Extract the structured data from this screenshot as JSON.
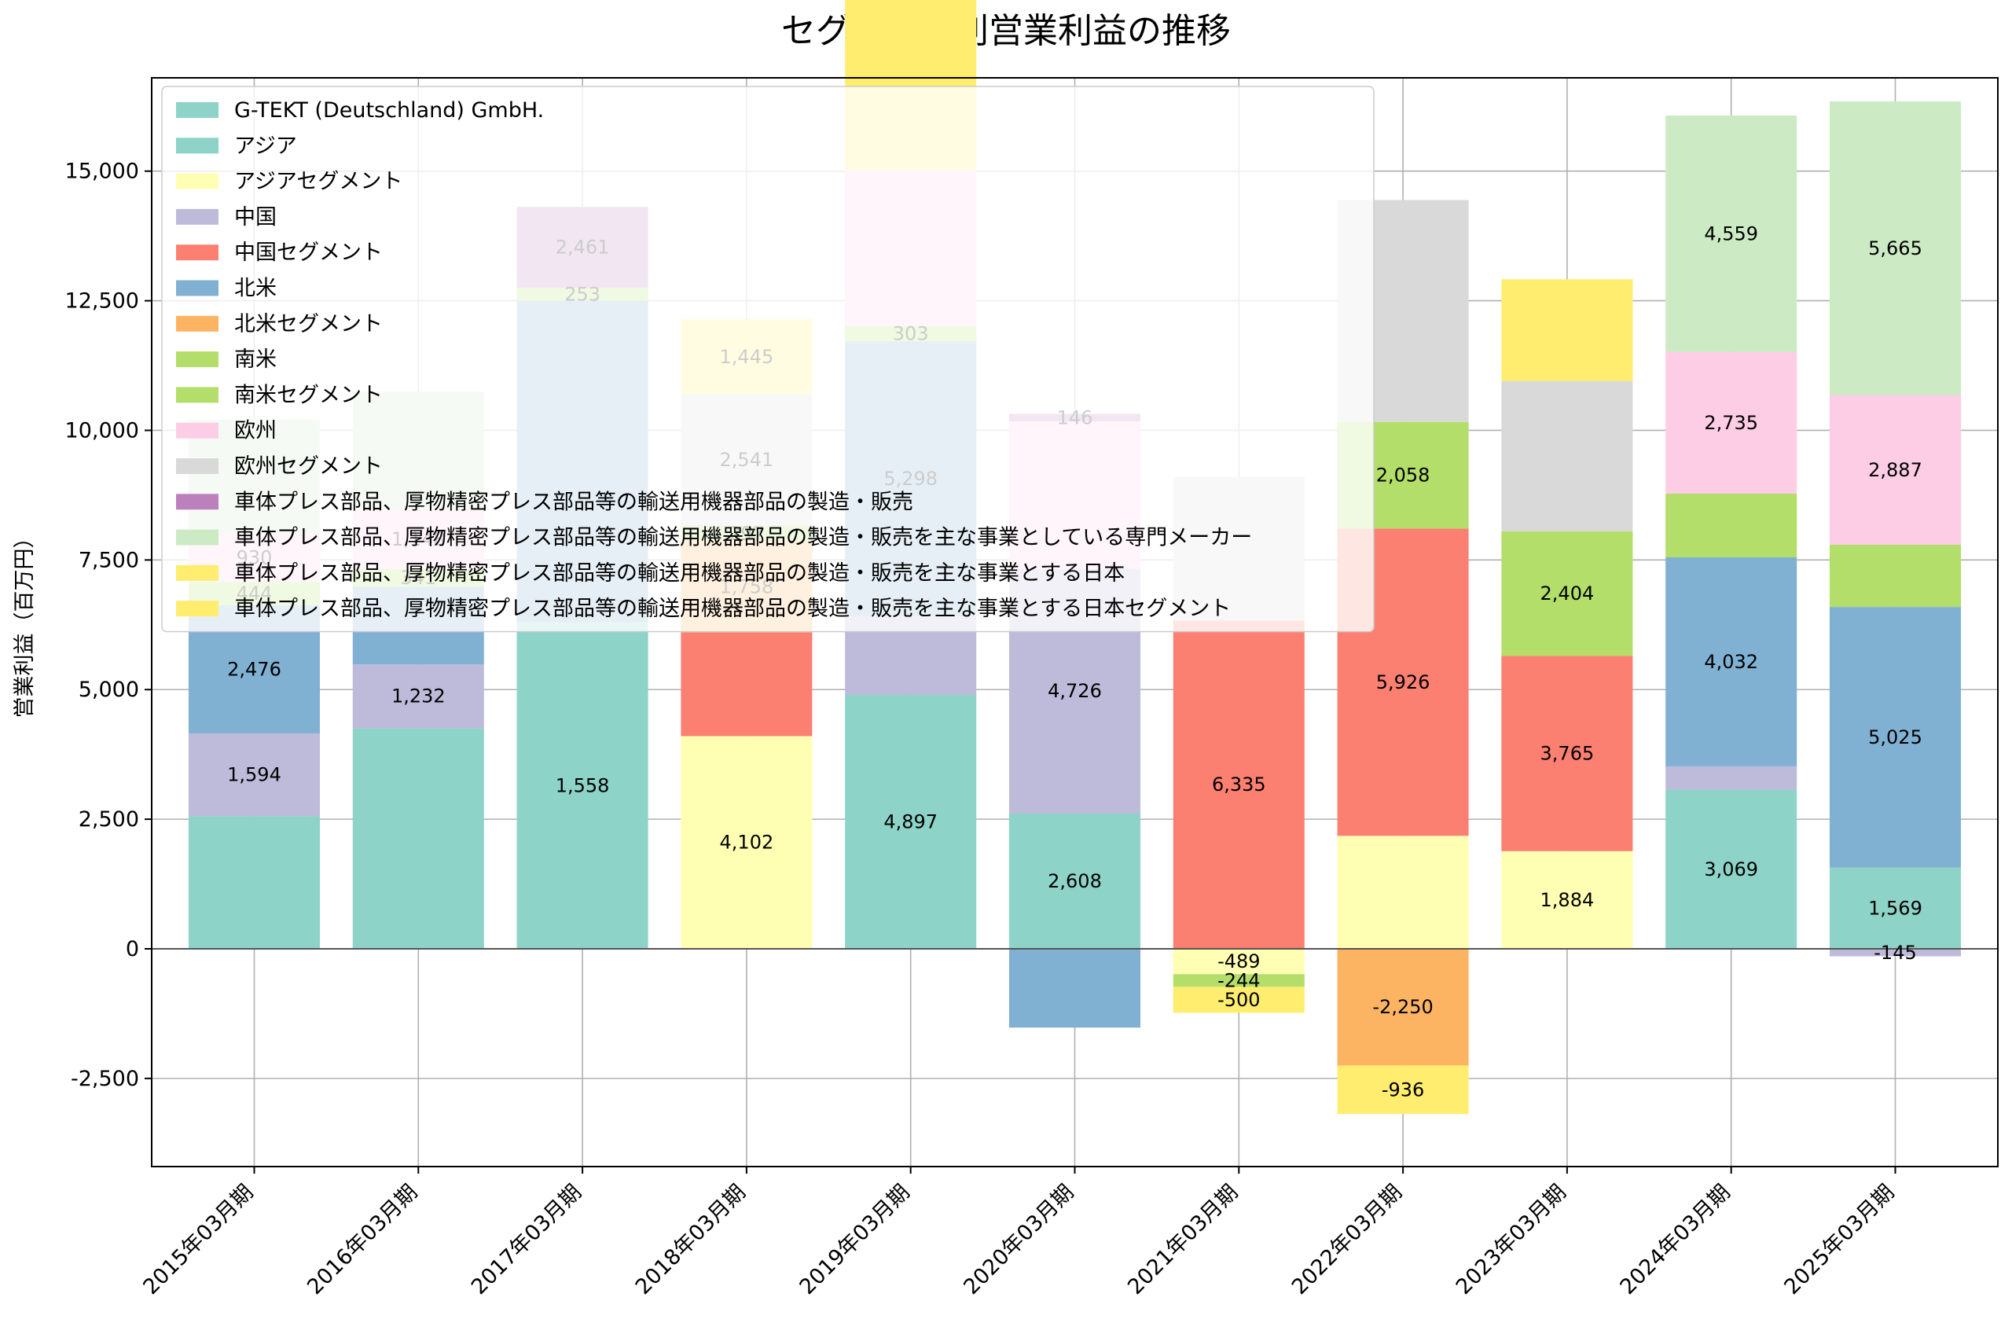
{
  "chart_data": {
    "type": "bar",
    "stacked": true,
    "title": "セグメント別営業利益の推移",
    "ylabel": "営業利益（百万円）",
    "xlabel": "",
    "ylim": [
      -4200,
      16800
    ],
    "yticks": [
      -2500,
      0,
      2500,
      5000,
      7500,
      10000,
      12500,
      15000
    ],
    "ytick_labels": [
      "-2,500",
      "0",
      "2,500",
      "5,000",
      "7,500",
      "10,000",
      "12,500",
      "15,000"
    ],
    "grid": true,
    "legend_position": "top-left",
    "categories": [
      "2015年03月期",
      "2016年03月期",
      "2017年03月期",
      "2018年03月期",
      "2019年03月期",
      "2020年03月期",
      "2021年03月期",
      "2022年03月期",
      "2023年03月期",
      "2024年03月期",
      "2025年03月期"
    ],
    "series": [
      {
        "name": "G-TEKT (Deutschland) GmbH.",
        "color": "#8dd3c7",
        "values": [
          null,
          null,
          null,
          null,
          null,
          null,
          null,
          null,
          null,
          null,
          null
        ]
      },
      {
        "name": "アジア",
        "color": "#8dd3c7",
        "values": [
          2561,
          4255,
          6300,
          null,
          4897,
          2608,
          null,
          null,
          null,
          3069,
          1569
        ]
      },
      {
        "name": "アジアセグメント",
        "color": "#ffffb3",
        "values": [
          null,
          null,
          null,
          4102,
          null,
          null,
          -489,
          2179,
          1884,
          null,
          null
        ]
      },
      {
        "name": "中国",
        "color": "#bebada",
        "values": [
          1594,
          1232,
          null,
          null,
          1520,
          4726,
          null,
          null,
          null,
          450,
          -145
        ]
      },
      {
        "name": "中国セグメント",
        "color": "#fb8072",
        "values": [
          null,
          null,
          null,
          2000,
          null,
          null,
          6335,
          5926,
          3765,
          null,
          null
        ]
      },
      {
        "name": "北米",
        "color": "#80b1d3",
        "values": [
          2476,
          1500,
          6200,
          null,
          5298,
          -1520,
          null,
          null,
          null,
          4032,
          5025
        ]
      },
      {
        "name": "北米セグメント",
        "color": "#fdb462",
        "values": [
          null,
          null,
          null,
          1758,
          null,
          null,
          null,
          -2250,
          null,
          null,
          null
        ]
      },
      {
        "name": "南米",
        "color": "#b3de69",
        "values": [
          444,
          341,
          253,
          null,
          303,
          null,
          null,
          null,
          null,
          1228,
          1200
        ]
      },
      {
        "name": "南米セグメント",
        "color": "#b3de69",
        "values": [
          null,
          null,
          null,
          297,
          null,
          null,
          -244,
          2058,
          2404,
          null,
          null
        ]
      },
      {
        "name": "欧州",
        "color": "#fccde5",
        "values": [
          930,
          1148,
          null,
          null,
          3000,
          2838,
          null,
          null,
          null,
          2735,
          2887
        ]
      },
      {
        "name": "欧州セグメント",
        "color": "#d9d9d9",
        "values": [
          null,
          null,
          null,
          2541,
          null,
          null,
          2770,
          4280,
          2900,
          null,
          null
        ]
      },
      {
        "name": "車体プレス部品、厚物精密プレス部品等の輸送用機器部品の製造・販売",
        "color": "#bc80bd",
        "values": [
          null,
          null,
          1558,
          null,
          null,
          146,
          null,
          null,
          null,
          null,
          null
        ]
      },
      {
        "name": "車体プレス部品、厚物精密プレス部品等の輸送用機器部品の製造・販売を主な事業としている専門メーカー",
        "color": "#ccebc5",
        "values": [
          2200,
          2270,
          null,
          null,
          null,
          null,
          null,
          null,
          null,
          4559,
          5665
        ]
      },
      {
        "name": "車体プレス部品、厚物精密プレス部品等の輸送用機器部品の製造・販売を主な事業とする日本",
        "color": "#ffed6f",
        "values": [
          null,
          null,
          null,
          1445,
          4900,
          null,
          null,
          null,
          null,
          null,
          null
        ]
      },
      {
        "name": "車体プレス部品、厚物精密プレス部品等の輸送用機器部品の製造・販売を主な事業とする日本セグメント",
        "color": "#ffed6f",
        "values": [
          null,
          null,
          null,
          null,
          null,
          null,
          -500,
          -936,
          1962,
          null,
          null
        ]
      }
    ],
    "data_labels": [
      [
        "1,594",
        "2,476",
        "444",
        "930"
      ],
      [
        "1,232",
        "341",
        "1,148"
      ],
      [
        "2,461",
        "253",
        "1,558"
      ],
      [
        "4,102",
        "1,758",
        "297",
        "2,541",
        "1,445"
      ],
      [
        "4,897",
        "5,298",
        "303"
      ],
      [
        "2,608",
        "4,726",
        "146"
      ],
      [
        "6,335",
        "-489",
        "-244",
        "-500"
      ],
      [
        "5,926",
        "2,058",
        "-2,250",
        "-936"
      ],
      [
        "1,884",
        "3,765",
        "2,404"
      ],
      [
        "3,069",
        "4,032",
        "2,735",
        "4,559"
      ],
      [
        "1,569",
        "5,025",
        "2,887",
        "5,665",
        "-145"
      ]
    ]
  }
}
